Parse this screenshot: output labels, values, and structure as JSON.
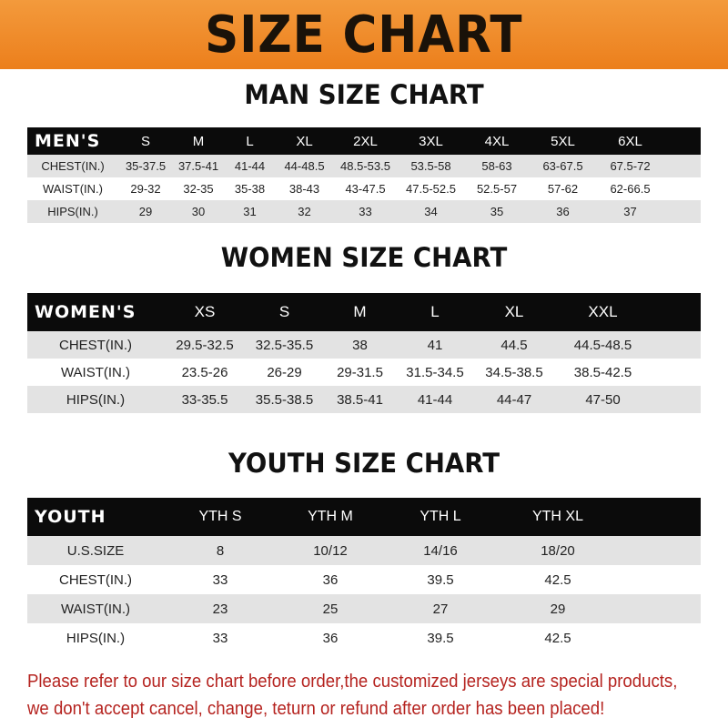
{
  "banner_title": "SIZE CHART",
  "tables": [
    {
      "title": "MAN SIZE CHART",
      "header": [
        "MEN'S",
        "S",
        "M",
        "L",
        "XL",
        "2XL",
        "3XL",
        "4XL",
        "5XL",
        "6XL"
      ],
      "rows": [
        [
          "CHEST(IN.)",
          "35-37.5",
          "37.5-41",
          "41-44",
          "44-48.5",
          "48.5-53.5",
          "53.5-58",
          "58-63",
          "63-67.5",
          "67.5-72"
        ],
        [
          "WAIST(IN.)",
          "29-32",
          "32-35",
          "35-38",
          "38-43",
          "43-47.5",
          "47.5-52.5",
          "52.5-57",
          "57-62",
          "62-66.5"
        ],
        [
          "HIPS(IN.)",
          "29",
          "30",
          "31",
          "32",
          "33",
          "34",
          "35",
          "36",
          "37"
        ]
      ]
    },
    {
      "title": "WOMEN SIZE CHART",
      "header": [
        "WOMEN'S",
        "XS",
        "S",
        "M",
        "L",
        "XL",
        "XXL"
      ],
      "rows": [
        [
          "CHEST(IN.)",
          "29.5-32.5",
          "32.5-35.5",
          "38",
          "41",
          "44.5",
          "44.5-48.5"
        ],
        [
          "WAIST(IN.)",
          "23.5-26",
          "26-29",
          "29-31.5",
          "31.5-34.5",
          "34.5-38.5",
          "38.5-42.5"
        ],
        [
          "HIPS(IN.)",
          "33-35.5",
          "35.5-38.5",
          "38.5-41",
          "41-44",
          "44-47",
          "47-50"
        ]
      ]
    },
    {
      "title": "YOUTH SIZE CHART",
      "header": [
        "YOUTH",
        "YTH S",
        "YTH M",
        "YTH L",
        "YTH XL"
      ],
      "rows": [
        [
          "U.S.SIZE",
          "8",
          "10/12",
          "14/16",
          "18/20"
        ],
        [
          "CHEST(IN.)",
          "33",
          "36",
          "39.5",
          "42.5"
        ],
        [
          "WAIST(IN.)",
          "23",
          "25",
          "27",
          "29"
        ],
        [
          "HIPS(IN.)",
          "33",
          "36",
          "39.5",
          "42.5"
        ]
      ]
    }
  ],
  "footer": {
    "line1": "Please refer to our size chart before order,the customized jerseys are special products,",
    "line2": "we don't accept cancel, change, teturn or refund after order has been placed!"
  },
  "colors": {
    "banner": "#ee8a2a",
    "header_row": "#0b0b0b",
    "stripe": "#e3e3e3",
    "footer_text": "#b5231f"
  }
}
